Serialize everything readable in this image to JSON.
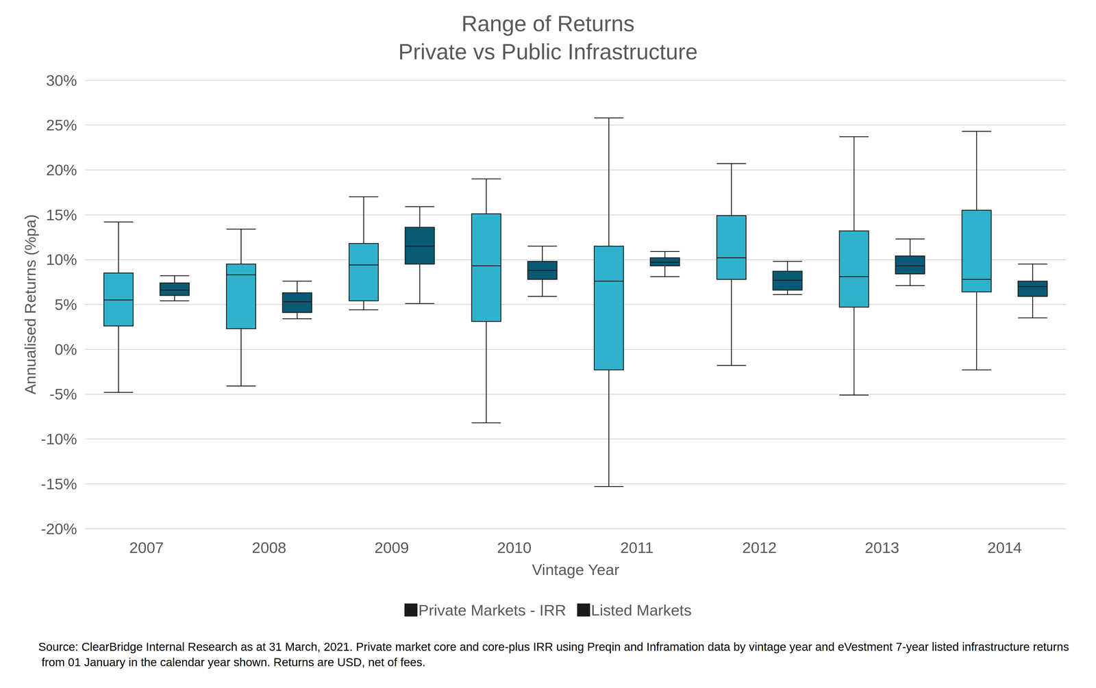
{
  "chart_data": {
    "type": "boxplot",
    "title": "Range of Returns",
    "subtitle": "Private vs Public Infrastructure",
    "x_label": "Vintage Year",
    "y_label": "Annualised Returns (%pa)",
    "footnote": "Source: ClearBridge Internal Research as at 31 March, 2021. Private market core and core-plus IRR using Preqin and Inframation data by vintage year and eVestment 7-year listed infrastructure returns from 01 January in the calendar year shown. Returns are USD, net of fees.",
    "categories": [
      "2007",
      "2008",
      "2009",
      "2010",
      "2011",
      "2012",
      "2013",
      "2014"
    ],
    "series": [
      {
        "name": "Private Markets - IRR",
        "color": "#31b2cc",
        "values": [
          [
            -4.8,
            2.6,
            5.5,
            8.5,
            14.2
          ],
          [
            -4.1,
            2.3,
            8.3,
            9.5,
            13.4
          ],
          [
            4.4,
            5.4,
            9.4,
            11.8,
            17.0
          ],
          [
            -8.2,
            3.1,
            9.3,
            15.1,
            19.0
          ],
          [
            -15.3,
            -2.3,
            7.6,
            11.5,
            25.8
          ],
          [
            -1.8,
            7.8,
            10.2,
            14.9,
            20.7
          ],
          [
            -5.1,
            4.7,
            8.1,
            13.2,
            23.7
          ],
          [
            -2.3,
            6.4,
            7.8,
            15.5,
            24.3
          ]
        ]
      },
      {
        "name": "Listed Markets",
        "color": "#085a75",
        "values": [
          [
            5.4,
            6.0,
            6.6,
            7.4,
            8.2
          ],
          [
            3.4,
            4.1,
            5.3,
            6.3,
            7.6
          ],
          [
            5.1,
            9.5,
            11.5,
            13.6,
            15.9
          ],
          [
            5.9,
            7.8,
            8.8,
            9.8,
            11.5
          ],
          [
            8.1,
            9.3,
            9.7,
            10.2,
            10.9
          ],
          [
            6.1,
            6.6,
            7.7,
            8.7,
            9.8
          ],
          [
            7.1,
            8.4,
            9.3,
            10.4,
            12.3
          ],
          [
            3.5,
            5.9,
            7.0,
            7.6,
            9.5
          ]
        ]
      }
    ],
    "ylim": [
      -20,
      30
    ],
    "yticks": [
      {
        "value": -20,
        "label": "-20%"
      },
      {
        "value": -15,
        "label": "-15%"
      },
      {
        "value": -10,
        "label": "-10%"
      },
      {
        "value": -5,
        "label": "-5%"
      },
      {
        "value": 0,
        "label": "0%"
      },
      {
        "value": 5,
        "label": "5%"
      },
      {
        "value": 10,
        "label": "10%"
      },
      {
        "value": 15,
        "label": "15%"
      },
      {
        "value": 20,
        "label": "20%"
      },
      {
        "value": 25,
        "label": "25%"
      },
      {
        "value": 30,
        "label": "30%"
      }
    ],
    "grid": true,
    "legend": "bottom"
  }
}
